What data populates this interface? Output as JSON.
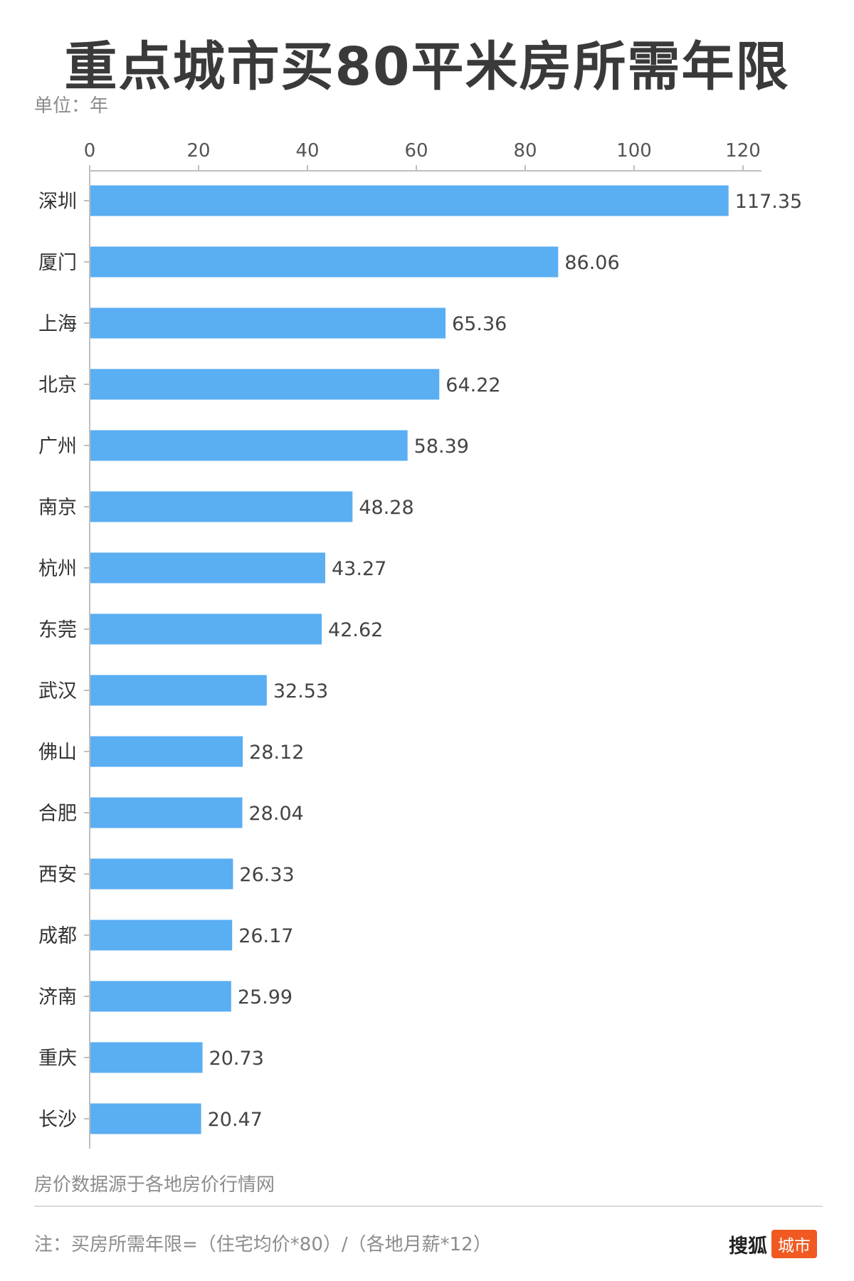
{
  "title": "重点城市买80平米房所需年限",
  "unit": "单位：年",
  "source": "房价数据源于各地房价行情网",
  "note": "注：买房所需年限=（住宅均价*80）/（各地月薪*12）",
  "brand": {
    "name": "搜狐",
    "badge": "城市"
  },
  "colors": {
    "bar": "#5aaef2",
    "axis": "#bfbfbf",
    "badge": "#f05a22"
  },
  "chart_data": {
    "type": "bar",
    "orientation": "horizontal",
    "title": "重点城市买80平米房所需年限",
    "xlabel": "",
    "ylabel": "",
    "xlim": [
      0,
      120
    ],
    "ticks": [
      0,
      20,
      40,
      60,
      80,
      100,
      120
    ],
    "tick_labels": [
      "0",
      "20",
      "40",
      "60",
      "80",
      "100",
      "120"
    ],
    "axis_position": "top",
    "grid": false,
    "categories": [
      "深圳",
      "厦门",
      "上海",
      "北京",
      "广州",
      "南京",
      "杭州",
      "东莞",
      "武汉",
      "佛山",
      "合肥",
      "西安",
      "成都",
      "济南",
      "重庆",
      "长沙"
    ],
    "values": [
      117.35,
      86.06,
      65.36,
      64.22,
      58.39,
      48.28,
      43.27,
      42.62,
      32.53,
      28.12,
      28.04,
      26.33,
      26.17,
      25.99,
      20.73,
      20.47
    ],
    "value_labels": [
      "117.35",
      "86.06",
      "65.36",
      "64.22",
      "58.39",
      "48.28",
      "43.27",
      "42.62",
      "32.53",
      "28.12",
      "28.04",
      "26.33",
      "26.17",
      "25.99",
      "20.73",
      "20.47"
    ]
  }
}
